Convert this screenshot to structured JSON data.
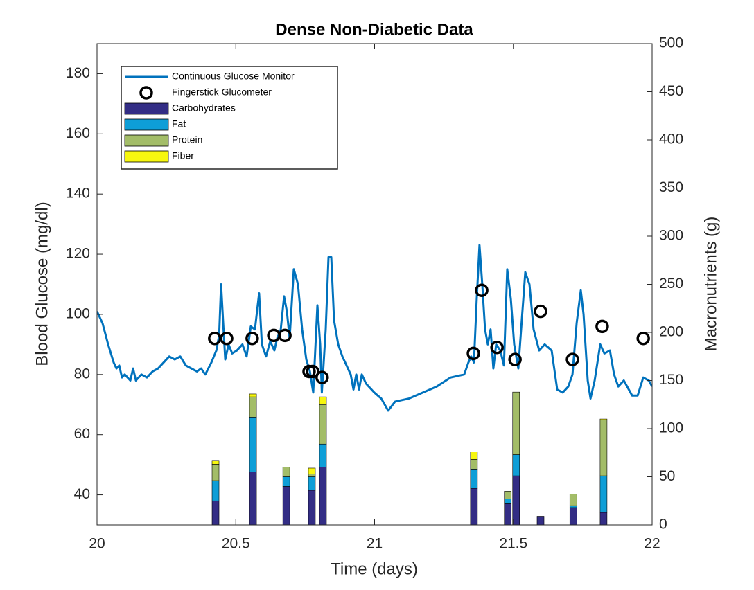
{
  "chart_data": {
    "type": "line",
    "title": "Dense Non-Diabetic Data",
    "xlabel": "Time (days)",
    "ylabel": "Blood Glucose (mg/dl)",
    "y2label": "Macronutrients (g)",
    "xlim": [
      20,
      22
    ],
    "xticks": [
      20,
      20.5,
      21,
      21.5,
      22
    ],
    "ylim": [
      30,
      190
    ],
    "yticks": [
      40,
      60,
      80,
      100,
      120,
      140,
      160,
      180
    ],
    "y2lim": [
      0,
      500
    ],
    "y2ticks": [
      0,
      50,
      100,
      150,
      200,
      250,
      300,
      350,
      400,
      450,
      500
    ],
    "legend": "upper left",
    "series": [
      {
        "name": "Continuous Glucose Monitor",
        "type": "line",
        "color": "#0072bd",
        "x": [
          20.0,
          20.02,
          20.04,
          20.06,
          20.07,
          20.08,
          20.09,
          20.1,
          20.12,
          20.13,
          20.14,
          20.16,
          20.18,
          20.2,
          20.22,
          20.24,
          20.26,
          20.28,
          20.3,
          20.32,
          20.34,
          20.36,
          20.375,
          20.39,
          20.412,
          20.43,
          20.44,
          20.447,
          20.454,
          20.462,
          20.474,
          20.487,
          20.504,
          20.524,
          20.539,
          20.554,
          20.569,
          20.584,
          20.594,
          20.609,
          20.624,
          20.639,
          20.649,
          20.662,
          20.674,
          20.684,
          20.694,
          20.709,
          20.724,
          20.739,
          20.754,
          20.767,
          20.779,
          20.794,
          20.804,
          20.81,
          20.824,
          20.834,
          20.844,
          20.854,
          20.869,
          20.884,
          20.899,
          20.914,
          20.924,
          20.934,
          20.944,
          20.954,
          20.969,
          20.999,
          21.024,
          21.049,
          21.074,
          21.124,
          21.174,
          21.224,
          21.274,
          21.323,
          21.338,
          21.348,
          21.358,
          21.368,
          21.378,
          21.388,
          21.398,
          21.408,
          21.418,
          21.428,
          21.438,
          21.453,
          21.466,
          21.478,
          21.491,
          21.503,
          21.518,
          21.528,
          21.543,
          21.558,
          21.573,
          21.593,
          21.613,
          21.638,
          21.658,
          21.678,
          21.698,
          21.713,
          21.728,
          21.743,
          21.753,
          21.768,
          21.778,
          21.793,
          21.813,
          21.828,
          21.848,
          21.863,
          21.878,
          21.898,
          21.928,
          21.948,
          21.968,
          21.988,
          22.0
        ],
        "values": [
          101,
          97,
          90,
          84,
          82,
          83,
          79,
          80,
          78,
          82,
          78,
          80,
          79,
          81,
          82,
          84,
          86,
          85,
          86,
          83,
          82,
          81,
          82,
          80,
          84,
          88,
          93,
          110,
          98,
          85,
          90,
          87,
          88,
          90,
          86,
          96,
          95,
          107,
          90,
          86,
          91,
          88,
          92,
          95,
          106,
          101,
          92,
          115,
          110,
          95,
          85,
          81,
          74,
          103,
          90,
          74,
          95,
          119,
          119,
          98,
          90,
          86,
          83,
          80,
          75,
          80,
          75,
          80,
          77,
          74,
          72,
          68,
          71,
          72,
          74,
          76,
          79,
          80,
          84,
          86,
          84,
          105,
          123,
          110,
          95,
          90,
          95,
          82,
          90,
          88,
          83,
          115,
          105,
          90,
          82,
          95,
          114,
          110,
          95,
          88,
          90,
          88,
          75,
          74,
          76,
          80,
          97,
          108,
          100,
          78,
          72,
          78,
          90,
          87,
          88,
          80,
          76,
          78,
          73,
          73,
          79,
          78,
          76
        ]
      },
      {
        "name": "Fingerstick Glucometer",
        "type": "scatter",
        "color": "#000000",
        "x": [
          20.424,
          20.467,
          20.559,
          20.637,
          20.677,
          20.764,
          20.777,
          20.811,
          21.356,
          21.386,
          21.441,
          21.506,
          21.598,
          21.713,
          21.82,
          21.968
        ],
        "values": [
          92,
          92,
          92,
          93,
          93,
          81,
          81,
          79,
          87,
          108,
          89,
          85,
          101,
          85,
          96,
          92
        ]
      },
      {
        "name": "Carbohydrates",
        "type": "bar",
        "axis": "y2",
        "color": "#332d85",
        "x": [
          20.427,
          20.562,
          20.682,
          20.774,
          20.814,
          21.358,
          21.48,
          21.51,
          21.598,
          21.716,
          21.825
        ],
        "values": [
          25,
          55,
          40,
          36,
          60,
          38,
          22,
          51,
          9,
          18,
          13
        ]
      },
      {
        "name": "Fat",
        "type": "bar",
        "axis": "y2",
        "color": "#0e9ed7",
        "x": [
          20.427,
          20.562,
          20.682,
          20.774,
          20.814,
          21.358,
          21.48,
          21.51,
          21.598,
          21.716,
          21.825
        ],
        "values": [
          21,
          57,
          10,
          14,
          24,
          20,
          5,
          22,
          0,
          2,
          38
        ]
      },
      {
        "name": "Protein",
        "type": "bar",
        "axis": "y2",
        "color": "#a3bd68",
        "x": [
          20.427,
          20.562,
          20.682,
          20.774,
          20.814,
          21.358,
          21.48,
          21.51,
          21.598,
          21.716,
          21.825
        ],
        "values": [
          17,
          21,
          10,
          3,
          41,
          10,
          8,
          65,
          0,
          12,
          58
        ]
      },
      {
        "name": "Fiber",
        "type": "bar",
        "axis": "y2",
        "color": "#f7f70f",
        "x": [
          20.427,
          20.562,
          20.682,
          20.774,
          20.814,
          21.358,
          21.48,
          21.51,
          21.598,
          21.716,
          21.825
        ],
        "values": [
          4,
          3,
          0,
          6,
          8,
          8,
          0,
          0,
          0,
          0,
          1
        ]
      }
    ]
  }
}
